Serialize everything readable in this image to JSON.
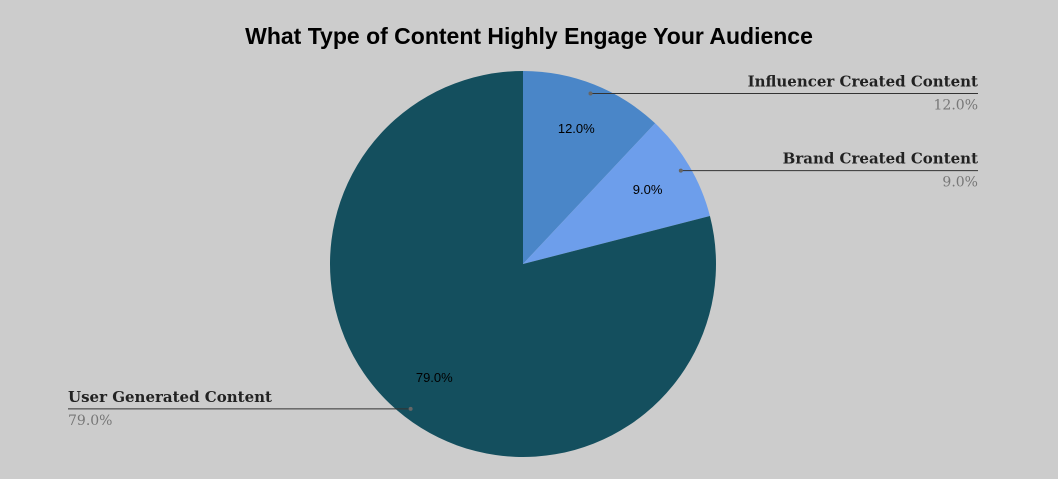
{
  "chart_data": {
    "type": "pie",
    "title": "What Type of Content Highly Engage Your Audience",
    "categories": [
      "Influencer Created Content",
      "Brand Created Content",
      "User Generated Content"
    ],
    "values": [
      12.0,
      9.0,
      79.0
    ],
    "value_labels": [
      "12.0%",
      "9.0%",
      "79.0%"
    ],
    "colors": [
      "#4a86c8",
      "#6d9eeb",
      "#144f5e"
    ]
  }
}
